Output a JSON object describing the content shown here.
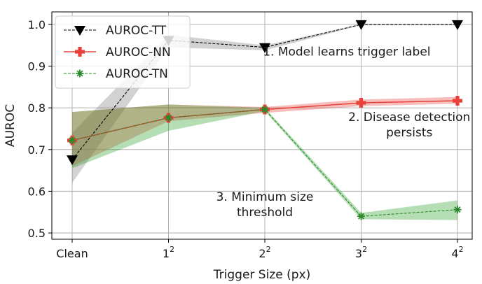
{
  "chart_data": {
    "type": "line",
    "xlabel": "Trigger Size (px)",
    "ylabel": "AUROC",
    "x_ticks": [
      {
        "base": "Clean",
        "sup": ""
      },
      {
        "base": "1",
        "sup": "2"
      },
      {
        "base": "2",
        "sup": "2"
      },
      {
        "base": "3",
        "sup": "2"
      },
      {
        "base": "4",
        "sup": "2"
      }
    ],
    "y_ticks": [
      "0.5",
      "0.6",
      "0.7",
      "0.8",
      "0.9",
      "1.0"
    ],
    "ylim": [
      0.485,
      1.03
    ],
    "grid": true,
    "legend_position": "top-left",
    "series": [
      {
        "name": "AUROC-TT",
        "color": "#000000",
        "line_style": "dashed",
        "marker": "triangle-down",
        "values": [
          0.676,
          0.962,
          0.945,
          1.0,
          1.0
        ],
        "band_lower": [
          0.62,
          0.945,
          0.938,
          0.998,
          0.998
        ],
        "band_upper": [
          0.74,
          0.975,
          0.95,
          1.0,
          1.0
        ],
        "band_color": "#7f7f7f"
      },
      {
        "name": "AUROC-NN",
        "color": "#e8413a",
        "line_style": "solid",
        "marker": "plus",
        "values": [
          0.722,
          0.776,
          0.796,
          0.812,
          0.817
        ],
        "band_lower": [
          0.66,
          0.768,
          0.788,
          0.804,
          0.81
        ],
        "band_upper": [
          0.79,
          0.808,
          0.802,
          0.82,
          0.826
        ],
        "band_color": "#e8413a"
      },
      {
        "name": "AUROC-TN",
        "color": "#2a8a2a",
        "line_style": "dashed",
        "marker": "star",
        "values": [
          0.722,
          0.776,
          0.796,
          0.54,
          0.556
        ],
        "band_lower": [
          0.655,
          0.745,
          0.792,
          0.533,
          0.531
        ],
        "band_upper": [
          0.79,
          0.808,
          0.8,
          0.548,
          0.578
        ],
        "band_color": "#2ca02c"
      }
    ],
    "annotations": [
      {
        "lines": [
          "1. Model learns trigger label"
        ],
        "x_index": 2.85,
        "y": 0.925,
        "align": "middle"
      },
      {
        "lines": [
          "2. Disease detection",
          "persists"
        ],
        "x_index": 3.5,
        "y": 0.768,
        "align": "middle"
      },
      {
        "lines": [
          "3. Minimum size",
          "threshold"
        ],
        "x_index": 2.0,
        "y": 0.577,
        "align": "middle"
      }
    ]
  }
}
